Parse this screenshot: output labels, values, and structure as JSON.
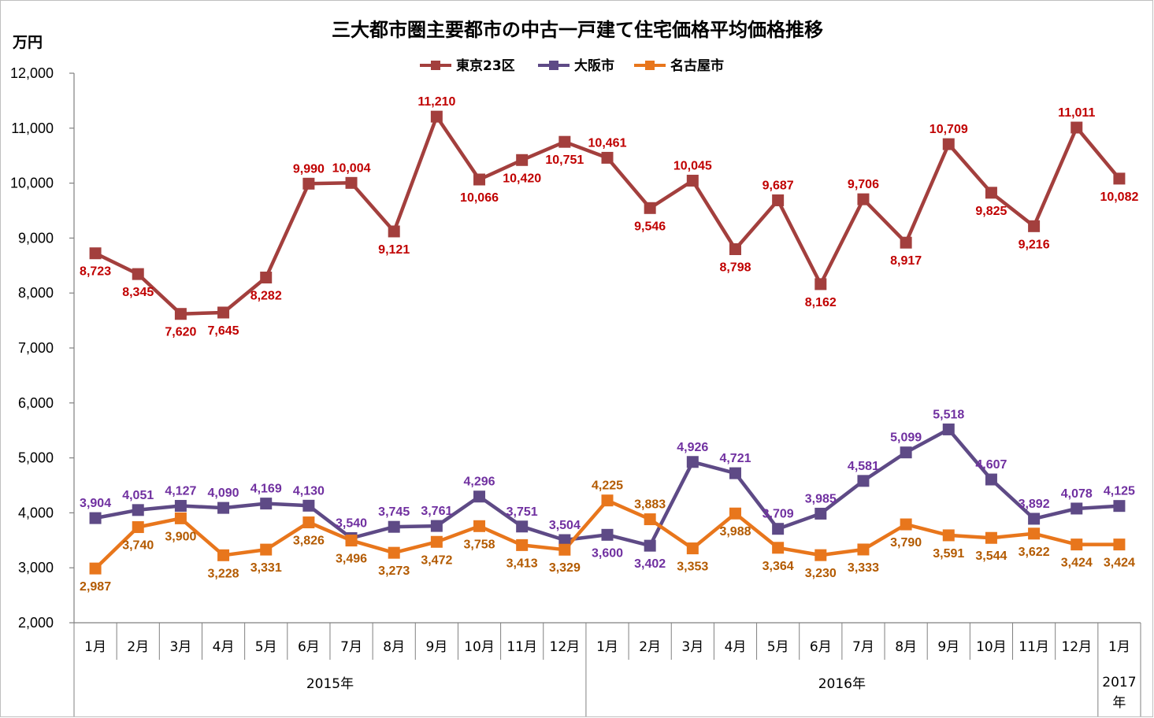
{
  "chart_data": {
    "type": "line",
    "title": "三大都市圏主要都市の中古一戸建て住宅価格平均価格推移",
    "ylabel": "万円",
    "ylim": [
      2000,
      12000
    ],
    "yticks": [
      "2,000",
      "3,000",
      "4,000",
      "5,000",
      "6,000",
      "7,000",
      "8,000",
      "9,000",
      "10,000",
      "11,000",
      "12,000"
    ],
    "ytick_values": [
      2000,
      3000,
      4000,
      5000,
      6000,
      7000,
      8000,
      9000,
      10000,
      11000,
      12000
    ],
    "categories": [
      "1月",
      "2月",
      "3月",
      "4月",
      "5月",
      "6月",
      "7月",
      "8月",
      "9月",
      "10月",
      "11月",
      "12月",
      "1月",
      "2月",
      "3月",
      "4月",
      "5月",
      "6月",
      "7月",
      "8月",
      "9月",
      "10月",
      "11月",
      "12月",
      "1月"
    ],
    "year_groups": [
      {
        "label": "2015年",
        "start": 0,
        "end": 11
      },
      {
        "label": "2016年",
        "start": 12,
        "end": 23
      },
      {
        "label": "2017年",
        "start": 24,
        "end": 24
      }
    ],
    "legend_position": "top-center",
    "grid": false,
    "series": [
      {
        "name": "東京23区",
        "color": "#A33F3D",
        "label_color": "#C00000",
        "marker": "square",
        "values": [
          8723,
          8345,
          7620,
          7645,
          8282,
          9990,
          10004,
          9121,
          11210,
          10066,
          10420,
          10751,
          10461,
          9546,
          10045,
          8798,
          9687,
          8162,
          9706,
          8917,
          10709,
          9825,
          9216,
          11011,
          10082
        ],
        "labels": [
          "8,723",
          "8,345",
          "7,620",
          "7,645",
          "8,282",
          "9,990",
          "10,004",
          "9,121",
          "11,210",
          "10,066",
          "10,420",
          "10,751",
          "10,461",
          "9,546",
          "10,045",
          "8,798",
          "9,687",
          "8,162",
          "9,706",
          "8,917",
          "10,709",
          "9,825",
          "9,216",
          "11,011",
          "10,082"
        ],
        "label_pos": [
          "b",
          "b",
          "b",
          "b",
          "b",
          "a",
          "a",
          "b",
          "a",
          "b",
          "b",
          "b",
          "a",
          "b",
          "a",
          "b",
          "a",
          "b",
          "a",
          "b",
          "a",
          "b",
          "b",
          "a",
          "b"
        ]
      },
      {
        "name": "大阪市",
        "color": "#5E4A86",
        "label_color": "#7030A0",
        "marker": "square",
        "values": [
          3904,
          4051,
          4127,
          4090,
          4169,
          4130,
          3540,
          3745,
          3761,
          4296,
          3751,
          3504,
          3600,
          3402,
          4926,
          4721,
          3709,
          3985,
          4581,
          5099,
          5518,
          4607,
          3892,
          4078,
          4125
        ],
        "labels": [
          "3,904",
          "4,051",
          "4,127",
          "4,090",
          "4,169",
          "4,130",
          "3,540",
          "3,745",
          "3,761",
          "4,296",
          "3,751",
          "3,504",
          "3,600",
          "3,402",
          "4,926",
          "4,721",
          "3,709",
          "3,985",
          "4,581",
          "5,099",
          "5,518",
          "4,607",
          "3,892",
          "4,078",
          "4,125"
        ],
        "label_pos": [
          "a",
          "a",
          "a",
          "a",
          "a",
          "a",
          "a",
          "a",
          "a",
          "a",
          "a",
          "a",
          "b",
          "b",
          "a",
          "a",
          "a",
          "a",
          "a",
          "a",
          "a",
          "a",
          "a",
          "a",
          "a"
        ]
      },
      {
        "name": "名古屋市",
        "color": "#E8761C",
        "label_color": "#B35A00",
        "marker": "square",
        "values": [
          2987,
          3740,
          3900,
          3228,
          3331,
          3826,
          3496,
          3273,
          3472,
          3758,
          3413,
          3329,
          4225,
          3883,
          3353,
          3988,
          3364,
          3230,
          3333,
          3790,
          3591,
          3544,
          3622,
          3424,
          3424
        ],
        "labels": [
          "2,987",
          "3,740",
          "3,900",
          "3,228",
          "3,331",
          "3,826",
          "3,496",
          "3,273",
          "3,472",
          "3,758",
          "3,413",
          "3,329",
          "4,225",
          "3,883",
          "3,353",
          "3,988",
          "3,364",
          "3,230",
          "3,333",
          "3,790",
          "3,591",
          "3,544",
          "3,622",
          "3,424",
          "3,424"
        ],
        "label_pos": [
          "b",
          "b",
          "b",
          "b",
          "b",
          "b",
          "b",
          "b",
          "b",
          "b",
          "b",
          "b",
          "a",
          "a",
          "b",
          "b",
          "b",
          "b",
          "b",
          "b",
          "b",
          "b",
          "b",
          "b",
          "b"
        ]
      }
    ]
  }
}
